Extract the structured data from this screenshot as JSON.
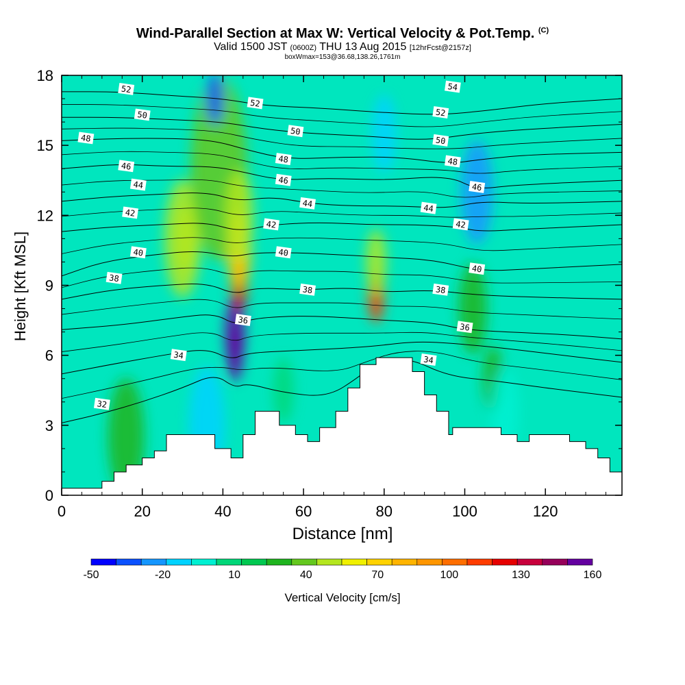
{
  "chart_data": {
    "type": "heatmap",
    "title": "Wind-Parallel Section at Max W: Vertical Velocity & Pot.Temp.",
    "copyright": "(C)",
    "subtitle": {
      "main_a": "Valid 1500 JST ",
      "main_b": "(0600Z)",
      "main_c": " THU 13 Aug 2015 ",
      "main_d": "[12hrFcst@2157z]",
      "line2": "boxWmax=153@36.68,138.26,1761m"
    },
    "xlabel": "Distance [nm]",
    "ylabel": "Height [Kft MSL]",
    "xlim": [
      0,
      139
    ],
    "ylim": [
      0,
      18
    ],
    "xticks": [
      0,
      20,
      40,
      60,
      80,
      100,
      120
    ],
    "yticks": [
      0,
      3,
      6,
      9,
      12,
      15,
      18
    ],
    "colorbar": {
      "label": "Vertical Velocity [cm/s]",
      "ticks": [
        -50,
        -20,
        10,
        40,
        70,
        100,
        130,
        160
      ],
      "colors": [
        "#0000ff",
        "#0a50ff",
        "#1496ff",
        "#00d2ff",
        "#00f0d2",
        "#00d778",
        "#00c850",
        "#1eb41e",
        "#64c81e",
        "#b4e61e",
        "#f0f000",
        "#ffd200",
        "#ffb400",
        "#ff9600",
        "#ff6e00",
        "#ff3c00",
        "#e60000",
        "#c8003c",
        "#96005a",
        "#6400a0"
      ]
    },
    "field_cells": [
      [
        31,
        11,
        45,
        10
      ],
      [
        30,
        11,
        40,
        18
      ],
      [
        39,
        14,
        30,
        28
      ],
      [
        38,
        17,
        -40,
        8
      ],
      [
        43,
        7,
        160,
        10
      ],
      [
        43,
        6,
        150,
        8
      ],
      [
        44,
        9,
        110,
        8
      ],
      [
        44,
        10.5,
        60,
        12
      ],
      [
        44,
        12,
        40,
        14
      ],
      [
        78,
        8.5,
        100,
        8
      ],
      [
        78,
        10,
        40,
        10
      ],
      [
        103,
        13,
        -30,
        16
      ],
      [
        102,
        8,
        20,
        14
      ],
      [
        107,
        5,
        25,
        10
      ],
      [
        36,
        3,
        -20,
        18
      ],
      [
        80,
        15.5,
        -20,
        12
      ],
      [
        16,
        2.5,
        25,
        18
      ],
      [
        110,
        3.5,
        -10,
        14
      ],
      [
        55,
        4.5,
        0,
        10
      ]
    ],
    "isentropes": [
      {
        "label": "32",
        "pts": [
          [
            0,
            3.1
          ],
          [
            10,
            3.5
          ],
          [
            20,
            4
          ],
          [
            30,
            4.6
          ],
          [
            38,
            5.2
          ],
          [
            43,
            4.6
          ],
          [
            46,
            4.8
          ],
          [
            55,
            4.4
          ],
          [
            66,
            4.2
          ],
          [
            74,
            5.1
          ],
          [
            78,
            5.7
          ],
          [
            86,
            5.9
          ],
          [
            96,
            5.1
          ],
          [
            108,
            4.9
          ],
          [
            120,
            4.6
          ],
          [
            139,
            4.2
          ]
        ],
        "lx": 12,
        "ly": 3.9
      },
      {
        "label": "34",
        "pts": [
          [
            0,
            5.2
          ],
          [
            12,
            5.6
          ],
          [
            25,
            6
          ],
          [
            36,
            6.3
          ],
          [
            42,
            5.8
          ],
          [
            46,
            6.1
          ],
          [
            58,
            6.2
          ],
          [
            70,
            6.3
          ],
          [
            78,
            6.4
          ],
          [
            88,
            6.6
          ],
          [
            98,
            6.5
          ],
          [
            110,
            6.3
          ],
          [
            124,
            6
          ],
          [
            139,
            5.7
          ]
        ],
        "lx": 29,
        "ly": 6
      },
      {
        "label": "36",
        "pts": [
          [
            0,
            7.1
          ],
          [
            15,
            7.3
          ],
          [
            28,
            7.6
          ],
          [
            38,
            7.8
          ],
          [
            43,
            7.3
          ],
          [
            48,
            7.6
          ],
          [
            60,
            7.7
          ],
          [
            72,
            7.6
          ],
          [
            80,
            7.5
          ],
          [
            92,
            7.4
          ],
          [
            100,
            7.1
          ],
          [
            110,
            7
          ],
          [
            124,
            6.9
          ],
          [
            139,
            6.7
          ]
        ],
        "lx": 45,
        "ly": 7.5
      },
      {
        "label": "38",
        "pts": [
          [
            0,
            8.4
          ],
          [
            12,
            8.8
          ],
          [
            25,
            9
          ],
          [
            36,
            9.1
          ],
          [
            43,
            8.6
          ],
          [
            48,
            8.9
          ],
          [
            60,
            8.8
          ],
          [
            72,
            8.9
          ],
          [
            80,
            8.7
          ],
          [
            92,
            8.8
          ],
          [
            102,
            8.6
          ],
          [
            115,
            8.5
          ],
          [
            139,
            8.4
          ]
        ],
        "lx": 61,
        "ly": 8.8
      },
      {
        "label": "40",
        "pts": [
          [
            0,
            9.4
          ],
          [
            10,
            10
          ],
          [
            22,
            10.3
          ],
          [
            34,
            10.5
          ],
          [
            42,
            10.2
          ],
          [
            48,
            10.4
          ],
          [
            58,
            10.4
          ],
          [
            70,
            10.3
          ],
          [
            80,
            10.2
          ],
          [
            92,
            10.1
          ],
          [
            104,
            9.6
          ],
          [
            116,
            9.7
          ],
          [
            139,
            9.9
          ]
        ],
        "lx": 55,
        "ly": 10.4
      },
      {
        "label": "42",
        "pts": [
          [
            0,
            11.3
          ],
          [
            12,
            11.5
          ],
          [
            25,
            11.6
          ],
          [
            36,
            11.7
          ],
          [
            44,
            11.3
          ],
          [
            52,
            11.6
          ],
          [
            64,
            11.7
          ],
          [
            76,
            11.6
          ],
          [
            88,
            11.6
          ],
          [
            98,
            11.5
          ],
          [
            104,
            11.3
          ],
          [
            114,
            11.4
          ],
          [
            139,
            11.6
          ]
        ],
        "lx": 52,
        "ly": 11.6
      },
      {
        "label": "44",
        "pts": [
          [
            0,
            12.6
          ],
          [
            12,
            12.8
          ],
          [
            24,
            12.9
          ],
          [
            36,
            13
          ],
          [
            44,
            12.6
          ],
          [
            52,
            12.8
          ],
          [
            62,
            12.5
          ],
          [
            72,
            12.4
          ],
          [
            84,
            12.4
          ],
          [
            96,
            12.3
          ],
          [
            104,
            12.6
          ],
          [
            116,
            12.5
          ],
          [
            139,
            12.6
          ]
        ],
        "lx": 61,
        "ly": 12.5
      },
      {
        "label": "46",
        "pts": [
          [
            0,
            14
          ],
          [
            14,
            14.2
          ],
          [
            26,
            14.1
          ],
          [
            37,
            14.1
          ],
          [
            44,
            13.9
          ],
          [
            54,
            13.5
          ],
          [
            66,
            13.6
          ],
          [
            80,
            13.5
          ],
          [
            96,
            13.7
          ],
          [
            103,
            13.1
          ],
          [
            112,
            13.3
          ],
          [
            139,
            13.5
          ]
        ],
        "lx": 55,
        "ly": 13.5
      },
      {
        "label": "48",
        "pts": [
          [
            0,
            15.2
          ],
          [
            14,
            15.3
          ],
          [
            28,
            15.3
          ],
          [
            38,
            15.2
          ],
          [
            46,
            14.8
          ],
          [
            56,
            14.4
          ],
          [
            70,
            14.5
          ],
          [
            84,
            14.5
          ],
          [
            96,
            14.2
          ],
          [
            104,
            14.4
          ],
          [
            116,
            14.6
          ],
          [
            139,
            14.7
          ]
        ],
        "lx": 55,
        "ly": 14.4
      },
      {
        "label": "50",
        "pts": [
          [
            0,
            16.2
          ],
          [
            14,
            16.2
          ],
          [
            28,
            16.1
          ],
          [
            40,
            16
          ],
          [
            50,
            15.7
          ],
          [
            62,
            15.5
          ],
          [
            76,
            15.4
          ],
          [
            90,
            15.2
          ],
          [
            102,
            15.5
          ],
          [
            116,
            15.7
          ],
          [
            139,
            15.9
          ]
        ],
        "lx": 58,
        "ly": 15.6
      },
      {
        "label": "52",
        "pts": [
          [
            0,
            17.3
          ],
          [
            14,
            17.3
          ],
          [
            30,
            17.1
          ],
          [
            40,
            17
          ],
          [
            50,
            16.7
          ],
          [
            64,
            16.6
          ],
          [
            80,
            16.4
          ],
          [
            94,
            16.3
          ],
          [
            106,
            16.5
          ],
          [
            120,
            16.8
          ],
          [
            139,
            17
          ]
        ],
        "lx": 48,
        "ly": 16.8
      }
    ],
    "contour_labels": [
      {
        "t": "52",
        "x": 16,
        "y": 17.4
      },
      {
        "t": "50",
        "x": 20,
        "y": 16.3
      },
      {
        "t": "48",
        "x": 6,
        "y": 15.3
      },
      {
        "t": "46",
        "x": 16,
        "y": 14.1
      },
      {
        "t": "44",
        "x": 19,
        "y": 13.3
      },
      {
        "t": "42",
        "x": 17,
        "y": 12.1
      },
      {
        "t": "40",
        "x": 19,
        "y": 10.4
      },
      {
        "t": "38",
        "x": 13,
        "y": 9.3
      },
      {
        "t": "34",
        "x": 29,
        "y": 6
      },
      {
        "t": "32",
        "x": 10,
        "y": 3.9
      },
      {
        "t": "36",
        "x": 45,
        "y": 7.5
      },
      {
        "t": "38",
        "x": 61,
        "y": 8.8
      },
      {
        "t": "40",
        "x": 55,
        "y": 10.4
      },
      {
        "t": "42",
        "x": 52,
        "y": 11.6
      },
      {
        "t": "44",
        "x": 61,
        "y": 12.5
      },
      {
        "t": "46",
        "x": 55,
        "y": 13.5
      },
      {
        "t": "48",
        "x": 55,
        "y": 14.4
      },
      {
        "t": "50",
        "x": 58,
        "y": 15.6
      },
      {
        "t": "52",
        "x": 48,
        "y": 16.8
      },
      {
        "t": "54",
        "x": 97,
        "y": 17.5
      },
      {
        "t": "52",
        "x": 94,
        "y": 16.4
      },
      {
        "t": "50",
        "x": 94,
        "y": 15.2
      },
      {
        "t": "48",
        "x": 97,
        "y": 14.3
      },
      {
        "t": "46",
        "x": 103,
        "y": 13.2
      },
      {
        "t": "44",
        "x": 91,
        "y": 12.3
      },
      {
        "t": "42",
        "x": 99,
        "y": 11.6
      },
      {
        "t": "40",
        "x": 103,
        "y": 9.7
      },
      {
        "t": "38",
        "x": 94,
        "y": 8.8
      },
      {
        "t": "36",
        "x": 100,
        "y": 7.2
      },
      {
        "t": "34",
        "x": 91,
        "y": 5.8
      }
    ],
    "terrain": [
      [
        0,
        0.3
      ],
      [
        10,
        0.3
      ],
      [
        10,
        0.6
      ],
      [
        13,
        0.6
      ],
      [
        13,
        1
      ],
      [
        16,
        1
      ],
      [
        16,
        1.3
      ],
      [
        20,
        1.3
      ],
      [
        20,
        1.6
      ],
      [
        23,
        1.6
      ],
      [
        23,
        1.9
      ],
      [
        26,
        1.9
      ],
      [
        26,
        2.6
      ],
      [
        38,
        2.6
      ],
      [
        38,
        2
      ],
      [
        42,
        2
      ],
      [
        42,
        1.6
      ],
      [
        45,
        1.6
      ],
      [
        45,
        2.6
      ],
      [
        48,
        2.6
      ],
      [
        48,
        3.6
      ],
      [
        54,
        3.6
      ],
      [
        54,
        3
      ],
      [
        58,
        3
      ],
      [
        58,
        2.6
      ],
      [
        61,
        2.6
      ],
      [
        61,
        2.3
      ],
      [
        64,
        2.3
      ],
      [
        64,
        2.9
      ],
      [
        68,
        2.9
      ],
      [
        68,
        3.6
      ],
      [
        71,
        3.6
      ],
      [
        71,
        4.6
      ],
      [
        74,
        4.6
      ],
      [
        74,
        5.6
      ],
      [
        78,
        5.6
      ],
      [
        78,
        5.9
      ],
      [
        87,
        5.9
      ],
      [
        87,
        5.3
      ],
      [
        90,
        5.3
      ],
      [
        90,
        4.3
      ],
      [
        93,
        4.3
      ],
      [
        93,
        3.6
      ],
      [
        96,
        3.6
      ],
      [
        96,
        2.6
      ],
      [
        97,
        2.6
      ],
      [
        97,
        2.9
      ],
      [
        109,
        2.9
      ],
      [
        109,
        2.6
      ],
      [
        113,
        2.6
      ],
      [
        113,
        2.3
      ],
      [
        116,
        2.3
      ],
      [
        116,
        2.6
      ],
      [
        126,
        2.6
      ],
      [
        126,
        2.3
      ],
      [
        130,
        2.3
      ],
      [
        130,
        2
      ],
      [
        133,
        2
      ],
      [
        133,
        1.6
      ],
      [
        136,
        1.6
      ],
      [
        136,
        1
      ],
      [
        139,
        1
      ],
      [
        139,
        0
      ]
    ]
  }
}
